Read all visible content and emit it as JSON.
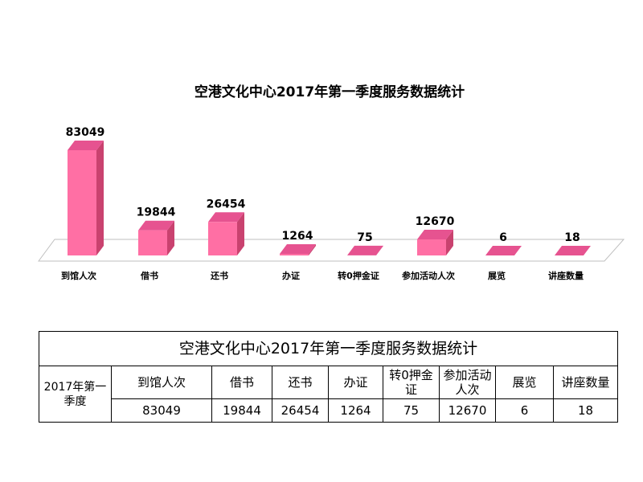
{
  "chart_data": {
    "type": "bar",
    "title": "空港文化中心2017年第一季度服务数据统计",
    "categories": [
      "到馆人次",
      "借书",
      "还书",
      "办证",
      "转0押金证",
      "参加活动人次",
      "展览",
      "讲座数量"
    ],
    "values": [
      83049,
      19844,
      26454,
      1264,
      75,
      12670,
      6,
      18
    ],
    "data_labels": [
      "83049",
      "19844",
      "26454",
      "1264",
      "75",
      "12670",
      "6",
      "18"
    ],
    "ylim": [
      0,
      83049
    ],
    "grid": false,
    "legend": "none",
    "bar_color": "#ff6fa4",
    "bar_side_color": "#c9426f",
    "bar_top_color": "#e65390"
  },
  "table": {
    "title": "空港文化中心2017年第一季度服务数据统计",
    "row_label": "2017年第一季度",
    "headers": [
      "到馆人次",
      "借书",
      "还书",
      "办证",
      "转0押金证",
      "参加活动人次",
      "展览",
      "讲座数量"
    ],
    "values": [
      "83049",
      "19844",
      "26454",
      "1264",
      "75",
      "12670",
      "6",
      "18"
    ]
  }
}
